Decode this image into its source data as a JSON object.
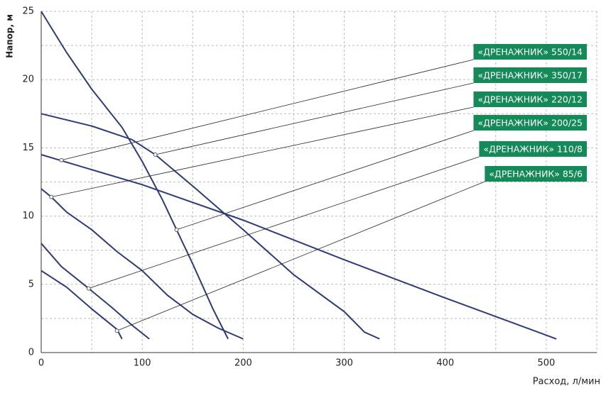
{
  "chart_data": {
    "type": "line",
    "y_label": "Напор, м",
    "x_label": "Расход, л/мин",
    "xlim": [
      0,
      550
    ],
    "ylim": [
      0,
      25
    ],
    "xticks": [
      0,
      100,
      200,
      300,
      400,
      500
    ],
    "yticks": [
      0,
      5,
      10,
      15,
      20,
      25
    ],
    "xminor": [
      50,
      150,
      250,
      350,
      450,
      550
    ],
    "yminor": [
      2.5,
      7.5,
      12.5,
      17.5,
      22.5
    ],
    "grid": true,
    "line_color": "#2d3a7c",
    "label_color": "#138a58",
    "series": [
      {
        "name": "«ДРЕНАЖНИК» 550/14",
        "x": [
          0,
          100,
          200,
          300,
          400,
          510
        ],
        "values": [
          14.5,
          12.3,
          9.7,
          6.8,
          4,
          1
        ],
        "marker": [
          20,
          14.1
        ]
      },
      {
        "name": "«ДРЕНАЖНИК» 350/17",
        "x": [
          0,
          50,
          90,
          113,
          150,
          200,
          250,
          300,
          320,
          335
        ],
        "values": [
          17.5,
          16.6,
          15.6,
          14.5,
          12.2,
          9,
          5.7,
          3,
          1.5,
          1
        ],
        "marker": [
          113,
          14.5
        ]
      },
      {
        "name": "«ДРЕНАЖНИК» 220/12",
        "x": [
          0,
          10,
          25,
          50,
          75,
          100,
          125,
          150,
          175,
          200
        ],
        "values": [
          12,
          11.4,
          10.3,
          9,
          7.4,
          6,
          4.2,
          2.8,
          1.8,
          1
        ],
        "marker": [
          10,
          11.4
        ]
      },
      {
        "name": "«ДРЕНАЖНИК» 200/25",
        "x": [
          0,
          25,
          50,
          80,
          100,
          120,
          134,
          150,
          170,
          185
        ],
        "values": [
          25,
          22,
          19.3,
          16.5,
          14,
          11.2,
          9,
          6.5,
          3.2,
          1
        ],
        "marker": [
          134,
          9
        ]
      },
      {
        "name": "«ДРЕНАЖНИК» 110/8",
        "x": [
          0,
          20,
          47,
          70,
          90,
          107
        ],
        "values": [
          8,
          6.3,
          4.7,
          3.3,
          2,
          1
        ],
        "marker": [
          47,
          4.7
        ]
      },
      {
        "name": "«ДРЕНАЖНИК» 85/6",
        "x": [
          0,
          25,
          50,
          75,
          80
        ],
        "values": [
          6,
          4.8,
          3.2,
          1.7,
          1
        ],
        "marker": [
          75,
          1.6
        ]
      }
    ]
  }
}
